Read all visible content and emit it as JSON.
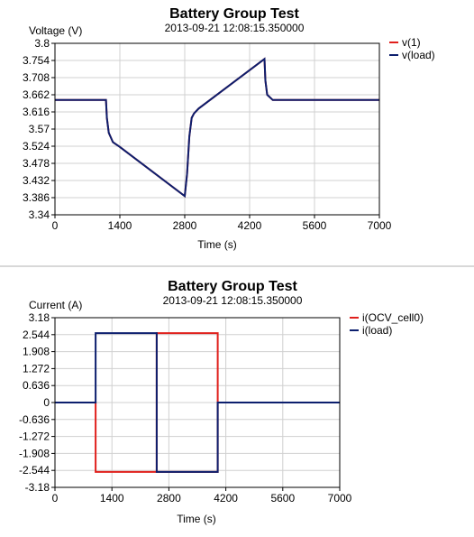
{
  "chart_data": [
    {
      "type": "line",
      "title": "Battery Group Test",
      "subtitle": "2013-09-21 12:08:15.350000",
      "xlabel": "Time (s)",
      "ylabel": "Voltage (V)",
      "xlim": [
        0,
        7000
      ],
      "ylim": [
        3.34,
        3.8
      ],
      "xticks": [
        "0",
        "1400",
        "2800",
        "4200",
        "5600",
        "7000"
      ],
      "yticks": [
        "3.8",
        "3.754",
        "3.708",
        "3.662",
        "3.616",
        "3.57",
        "3.524",
        "3.478",
        "3.432",
        "3.386",
        "3.34"
      ],
      "grid": true,
      "legend": "top-right",
      "series": [
        {
          "name": "v(1)",
          "color": "#e0201c",
          "points": [
            [
              0,
              3.648
            ],
            [
              1100,
              3.648
            ],
            [
              1120,
              3.6
            ],
            [
              1160,
              3.56
            ],
            [
              1250,
              3.535
            ],
            [
              1400,
              3.522
            ],
            [
              2800,
              3.39
            ],
            [
              2850,
              3.45
            ],
            [
              2900,
              3.55
            ],
            [
              2950,
              3.6
            ],
            [
              3000,
              3.612
            ],
            [
              3100,
              3.625
            ],
            [
              4520,
              3.758
            ],
            [
              4540,
              3.7
            ],
            [
              4580,
              3.662
            ],
            [
              4700,
              3.648
            ],
            [
              7000,
              3.648
            ]
          ]
        },
        {
          "name": "v(load)",
          "color": "#0c1f6e",
          "points": [
            [
              0,
              3.648
            ],
            [
              1100,
              3.648
            ],
            [
              1120,
              3.6
            ],
            [
              1160,
              3.56
            ],
            [
              1250,
              3.535
            ],
            [
              1400,
              3.522
            ],
            [
              2800,
              3.39
            ],
            [
              2850,
              3.45
            ],
            [
              2900,
              3.55
            ],
            [
              2950,
              3.6
            ],
            [
              3000,
              3.612
            ],
            [
              3100,
              3.625
            ],
            [
              4520,
              3.758
            ],
            [
              4540,
              3.7
            ],
            [
              4580,
              3.662
            ],
            [
              4700,
              3.648
            ],
            [
              7000,
              3.648
            ]
          ]
        }
      ]
    },
    {
      "type": "line",
      "title": "Battery Group Test",
      "subtitle": "2013-09-21 12:08:15.350000",
      "xlabel": "Time (s)",
      "ylabel": "Current (A)",
      "xlim": [
        0,
        7000
      ],
      "ylim": [
        -3.18,
        3.18
      ],
      "xticks": [
        "0",
        "1400",
        "2800",
        "4200",
        "5600",
        "7000"
      ],
      "yticks": [
        "3.18",
        "2.544",
        "1.908",
        "1.272",
        "0.636",
        "0",
        "-0.636",
        "-1.272",
        "-1.908",
        "-2.544",
        "-3.18"
      ],
      "grid": true,
      "legend": "top-right",
      "series": [
        {
          "name": "i(OCV_cell0)",
          "color": "#e0201c",
          "points": [
            [
              0,
              0
            ],
            [
              1000,
              0
            ],
            [
              1000,
              -2.6
            ],
            [
              4000,
              -2.6
            ],
            [
              4000,
              2.6
            ],
            [
              2500,
              2.6
            ],
            [
              2500,
              -2.6
            ],
            [
              4000,
              -2.6
            ],
            [
              4000,
              0
            ],
            [
              7000,
              0
            ]
          ]
        },
        {
          "name": "i(load)",
          "color": "#0c1f6e",
          "points": [
            [
              0,
              0
            ],
            [
              1000,
              0
            ],
            [
              1000,
              2.6
            ],
            [
              2500,
              2.6
            ],
            [
              2500,
              -2.6
            ],
            [
              4000,
              -2.6
            ],
            [
              4000,
              0
            ],
            [
              7000,
              0
            ]
          ]
        }
      ]
    }
  ]
}
